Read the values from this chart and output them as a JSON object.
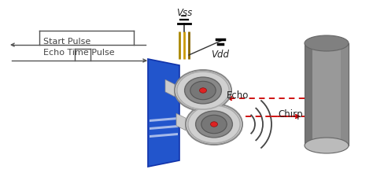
{
  "bg_color": "#ffffff",
  "board_color_face": "#2255cc",
  "board_color_side": "#1a3a99",
  "chirp_label": "Chirp",
  "echo_label": "Echo",
  "vdd_label": "Vdd",
  "vss_label": "Vss",
  "start_pulse_label": "Start Pulse",
  "echo_time_label": "Echo Time Pulse",
  "arrow_color": "#cc0000",
  "wire_color": "#333333",
  "pulse_color": "#555555",
  "cylinder_body_color": "#888888",
  "cylinder_top_color": "#aaaaaa",
  "cylinder_dark_color": "#666666",
  "sensor_outer_color": "#dddddd",
  "sensor_inner_color": "#aaaaaa",
  "sensor_dark_color": "#555555",
  "sensor_center_color": "#cc2222",
  "wave_color": "#444444",
  "figsize": [
    4.74,
    2.2
  ],
  "dpi": 100
}
